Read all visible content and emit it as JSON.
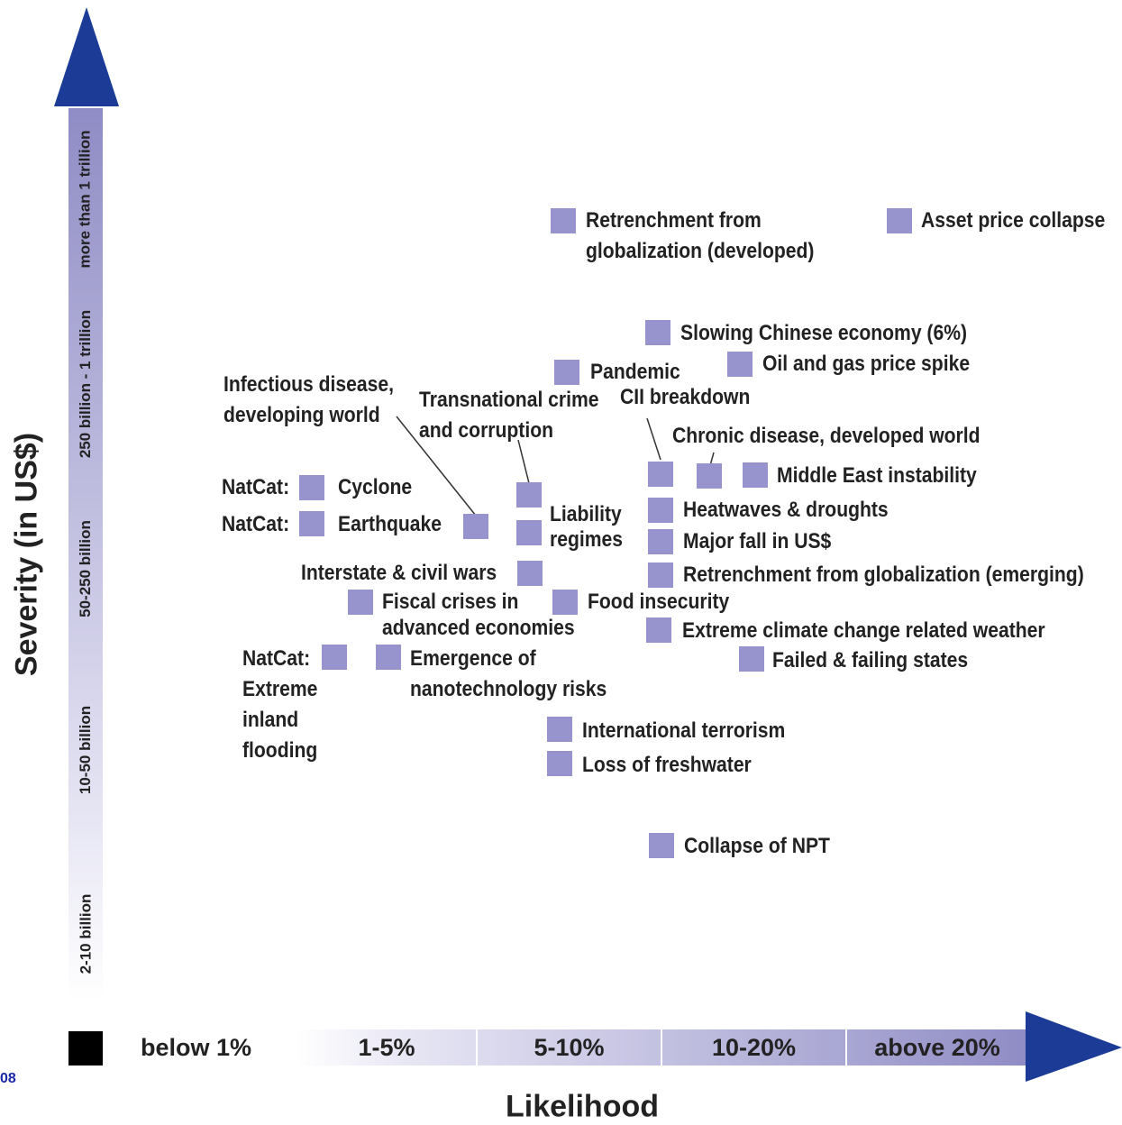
{
  "colors": {
    "marker": "#9793cc",
    "axis_arrow": "#1c3b96",
    "band_dark": "#8f8cc5",
    "band_mid": "#a9a6d6",
    "band_light": "#c8c6e6",
    "band_lightest": "#e7e6f4",
    "below_marker": "#000000"
  },
  "corner_label": "08",
  "chart_data": {
    "type": "scatter",
    "xlabel": "Likelihood",
    "ylabel": "Severity (in US$)",
    "x_categories": [
      "below 1%",
      "1-5%",
      "5-10%",
      "10-20%",
      "above 20%"
    ],
    "y_categories": [
      "2-10 billion",
      "10-50 billion",
      "50-250 billion",
      "250 billion - 1 trillion",
      "more than 1 trillion"
    ],
    "grid": false,
    "legend": "none",
    "points": [
      {
        "label": "Retrenchment from globalization (developed)",
        "likelihood": "5-10%",
        "severity": "more than 1 trillion"
      },
      {
        "label": "Asset price collapse",
        "likelihood": "above 20%",
        "severity": "more than 1 trillion"
      },
      {
        "label": "Slowing Chinese economy (6%)",
        "likelihood": "10-20%",
        "severity": "250 billion - 1 trillion"
      },
      {
        "label": "Pandemic",
        "likelihood": "5-10%",
        "severity": "250 billion - 1 trillion"
      },
      {
        "label": "Oil and gas price spike",
        "likelihood": "10-20%",
        "severity": "250 billion - 1 trillion"
      },
      {
        "label": "Infectious disease, developing world",
        "likelihood": "1-5%",
        "severity": "50-250 billion"
      },
      {
        "label": "Transnational crime and corruption",
        "likelihood": "5-10%",
        "severity": "50-250 billion"
      },
      {
        "label": "CII breakdown",
        "likelihood": "10-20%",
        "severity": "50-250 billion"
      },
      {
        "label": "Chronic disease, developed world",
        "likelihood": "10-20%",
        "severity": "50-250 billion"
      },
      {
        "label": "Middle East instability",
        "likelihood": "10-20%",
        "severity": "50-250 billion"
      },
      {
        "label": "NatCat: Cyclone",
        "likelihood": "1-5%",
        "severity": "50-250 billion"
      },
      {
        "label": "NatCat: Earthquake",
        "likelihood": "1-5%",
        "severity": "50-250 billion"
      },
      {
        "label": "Liability regimes",
        "likelihood": "5-10%",
        "severity": "50-250 billion"
      },
      {
        "label": "Heatwaves & droughts",
        "likelihood": "10-20%",
        "severity": "50-250 billion"
      },
      {
        "label": "Major fall in US$",
        "likelihood": "10-20%",
        "severity": "50-250 billion"
      },
      {
        "label": "Interstate & civil wars",
        "likelihood": "5-10%",
        "severity": "50-250 billion"
      },
      {
        "label": "Retrenchment from globalization (emerging)",
        "likelihood": "10-20%",
        "severity": "50-250 billion"
      },
      {
        "label": "Fiscal crises in advanced economies",
        "likelihood": "1-5%",
        "severity": "50-250 billion"
      },
      {
        "label": "Food insecurity",
        "likelihood": "5-10%",
        "severity": "50-250 billion"
      },
      {
        "label": "Extreme climate change related weather",
        "likelihood": "10-20%",
        "severity": "50-250 billion"
      },
      {
        "label": "Failed & failing states",
        "likelihood": "10-20%",
        "severity": "50-250 billion"
      },
      {
        "label": "NatCat: Extreme inland flooding",
        "likelihood": "1-5%",
        "severity": "10-50 billion"
      },
      {
        "label": "Emergence of nanotechnology risks",
        "likelihood": "1-5%",
        "severity": "10-50 billion"
      },
      {
        "label": "International terrorism",
        "likelihood": "5-10%",
        "severity": "10-50 billion"
      },
      {
        "label": "Loss of freshwater",
        "likelihood": "5-10%",
        "severity": "10-50 billion"
      },
      {
        "label": "Collapse of NPT",
        "likelihood": "10-20%",
        "severity": "10-50 billion"
      }
    ]
  },
  "labels": {
    "retrench_dev_1": "Retrenchment from",
    "retrench_dev_2": "globalization (developed)",
    "asset": "Asset price collapse",
    "chinese": "Slowing Chinese economy (6%)",
    "pandemic": "Pandemic",
    "oil": "Oil and gas price spike",
    "infect_1": "Infectious disease,",
    "infect_2": "developing world",
    "transcrime_1": "Transnational crime",
    "transcrime_2": "and corruption",
    "cii": "CII breakdown",
    "chronic": "Chronic disease, developed world",
    "mideast": "Middle East instability",
    "natcat_1": "NatCat:",
    "cyclone": "Cyclone",
    "natcat_2": "NatCat:",
    "earthquake": "Earthquake",
    "liability_1": "Liability",
    "liability_2": "regimes",
    "heat": "Heatwaves & droughts",
    "usd": "Major fall in US$",
    "wars": "Interstate & civil wars",
    "retrench_em": "Retrenchment from globalization (emerging)",
    "fiscal_1": "Fiscal crises in",
    "fiscal_2": "advanced economies",
    "food": "Food insecurity",
    "climate": "Extreme climate change related weather",
    "failed": "Failed & failing states",
    "flood_1": "NatCat:",
    "flood_2": "Extreme",
    "flood_3": "inland",
    "flood_4": "flooding",
    "nano_1": "Emergence of",
    "nano_2": "nanotechnology risks",
    "terror": "International terrorism",
    "water": "Loss of freshwater",
    "npt": "Collapse of NPT"
  }
}
